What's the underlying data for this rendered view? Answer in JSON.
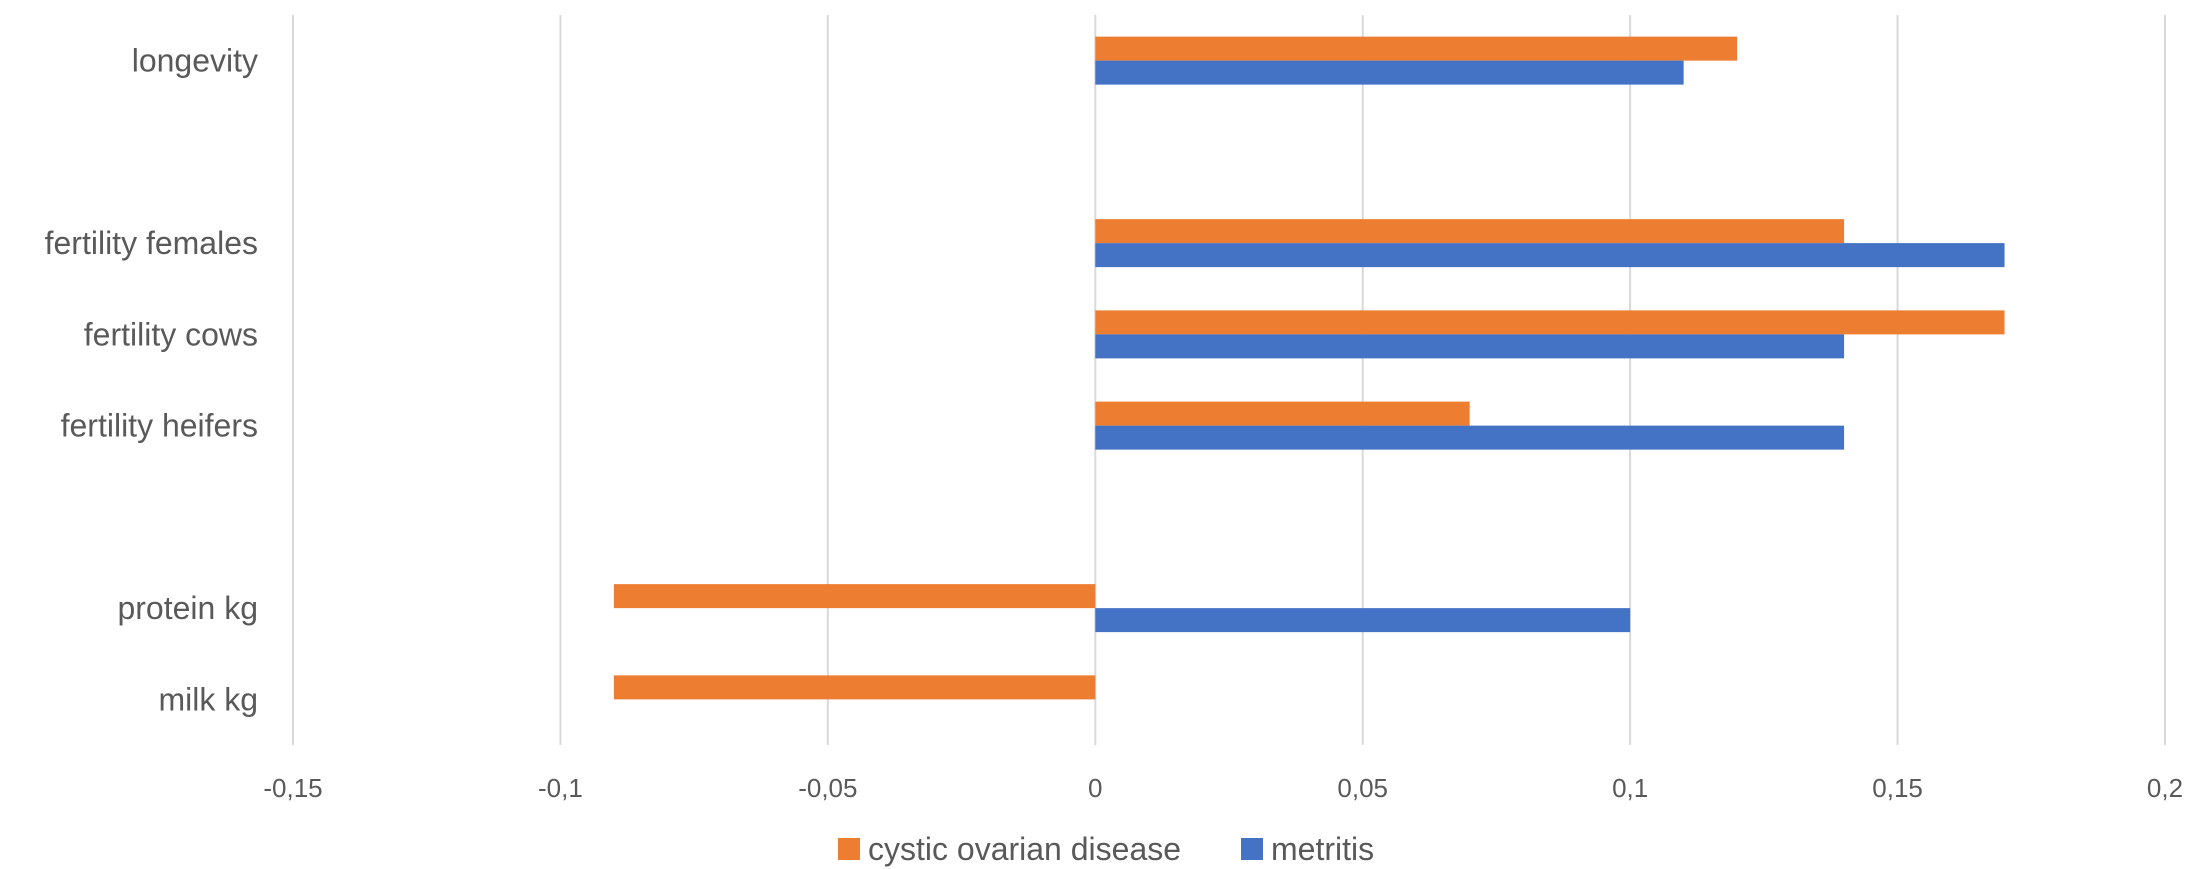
{
  "chart_data": {
    "type": "bar",
    "orientation": "horizontal",
    "categories": [
      "longevity",
      "",
      "fertility females",
      "fertility cows",
      "fertility heifers",
      "",
      "protein kg",
      "milk kg"
    ],
    "series": [
      {
        "name": "cystic ovarian disease",
        "color": "#ED7D31",
        "values": [
          0.12,
          null,
          0.14,
          0.17,
          0.07,
          null,
          -0.09,
          -0.09
        ]
      },
      {
        "name": "metritis",
        "color": "#4472C4",
        "values": [
          0.11,
          null,
          0.17,
          0.14,
          0.14,
          null,
          0.1,
          null
        ]
      }
    ],
    "xlim": [
      -0.15,
      0.2
    ],
    "xticks": [
      -0.15,
      -0.1,
      -0.05,
      0,
      0.05,
      0.1,
      0.15,
      0.2
    ],
    "xtick_labels": [
      "-0,15",
      "-0,1",
      "-0,05",
      "0",
      "0,05",
      "0,1",
      "0,15",
      "0,2"
    ],
    "grid": true,
    "legend_position": "bottom"
  }
}
